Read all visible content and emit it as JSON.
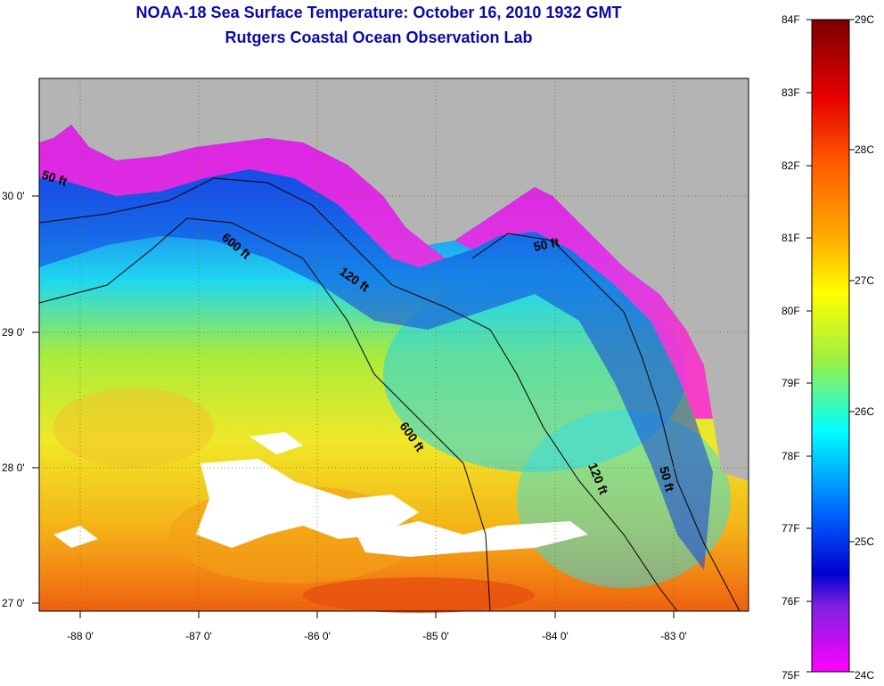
{
  "title": "NOAA-18 Sea Surface Temperature:  October 16, 2010 1932 GMT",
  "subtitle": "Rutgers Coastal Ocean Observation Lab",
  "x_ticks": [
    "-88 0'",
    "-87 0'",
    "-86 0'",
    "-85 0'",
    "-84 0'",
    "-83 0'"
  ],
  "y_ticks": [
    "30 0'",
    "29 0'",
    "28 0'",
    "27 0'"
  ],
  "contour_labels": [
    "50 ft",
    "600 ft",
    "120 ft",
    "50 ft",
    "600 ft",
    "120 ft",
    "50 ft"
  ],
  "colorbar": {
    "f_labels": [
      "84F",
      "83F",
      "82F",
      "81F",
      "80F",
      "79F",
      "78F",
      "77F",
      "76F",
      "75F"
    ],
    "c_labels": [
      "29C",
      "28C",
      "27C",
      "26C",
      "25C",
      "24C"
    ]
  },
  "colors": {
    "land": "#b4b4b4",
    "cloud": "#ffffff",
    "title": "#0a0aa8"
  }
}
